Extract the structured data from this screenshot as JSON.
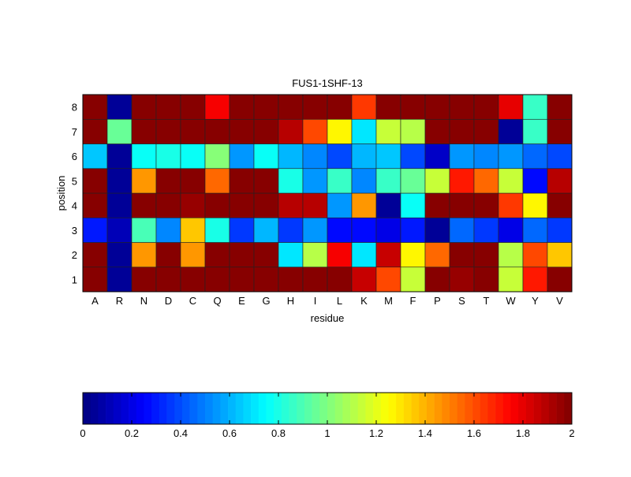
{
  "chart_data": {
    "type": "heatmap",
    "title": "FUS1-1SHF-13",
    "xlabel": "residue",
    "ylabel": "position",
    "x_categories": [
      "A",
      "R",
      "N",
      "D",
      "C",
      "Q",
      "E",
      "G",
      "H",
      "I",
      "L",
      "K",
      "M",
      "F",
      "P",
      "S",
      "T",
      "W",
      "Y",
      "V"
    ],
    "y_categories": [
      "1",
      "2",
      "3",
      "4",
      "5",
      "6",
      "7",
      "8"
    ],
    "colormap": "jet",
    "clim": [
      0,
      2
    ],
    "colorbar": {
      "placement": "bottom",
      "ticks": [
        "0",
        "0.2",
        "0.4",
        "0.6",
        "0.8",
        "1",
        "1.2",
        "1.4",
        "1.6",
        "1.8",
        "2"
      ]
    },
    "values_by_position": {
      "8": [
        2,
        0.05,
        2,
        2,
        2,
        1.75,
        2,
        2,
        2,
        2,
        2,
        1.65,
        2,
        2,
        2,
        2,
        2,
        1.8,
        0.85,
        2
      ],
      "7": [
        2,
        0.95,
        2,
        2,
        2,
        2,
        2,
        2,
        1.9,
        1.6,
        1.25,
        0.7,
        1.15,
        1.1,
        2,
        2,
        2,
        0.05,
        0.85,
        2
      ],
      "6": [
        0.65,
        0.05,
        0.75,
        0.8,
        0.75,
        1.0,
        0.55,
        0.75,
        0.6,
        0.5,
        0.4,
        0.6,
        0.65,
        0.4,
        0.15,
        0.55,
        0.5,
        0.55,
        0.45,
        0.4
      ],
      "5": [
        2,
        0.05,
        1.45,
        2,
        2,
        1.55,
        2,
        2,
        0.8,
        0.55,
        0.85,
        0.5,
        0.85,
        0.95,
        1.15,
        1.7,
        1.55,
        1.15,
        0.25,
        1.9
      ],
      "4": [
        2,
        0.05,
        2,
        2,
        1.95,
        2,
        2,
        2,
        1.9,
        1.9,
        0.55,
        1.45,
        0.05,
        0.75,
        2,
        2,
        2,
        1.65,
        1.25,
        2
      ],
      "3": [
        0.3,
        0.1,
        0.9,
        0.5,
        1.35,
        0.8,
        0.35,
        0.6,
        0.35,
        0.55,
        0.25,
        0.25,
        0.2,
        0.3,
        0.05,
        0.45,
        0.35,
        0.2,
        0.45,
        0.35
      ],
      "2": [
        2,
        0.05,
        1.45,
        2,
        1.45,
        2,
        2,
        2,
        0.7,
        1.1,
        1.75,
        0.7,
        1.85,
        1.25,
        1.55,
        2,
        2,
        1.1,
        1.6,
        1.35
      ],
      "1": [
        2,
        0.05,
        2,
        2,
        2,
        2,
        2,
        2,
        2,
        2,
        2,
        1.85,
        1.6,
        1.15,
        2,
        1.95,
        2,
        1.15,
        1.7,
        2
      ]
    }
  }
}
